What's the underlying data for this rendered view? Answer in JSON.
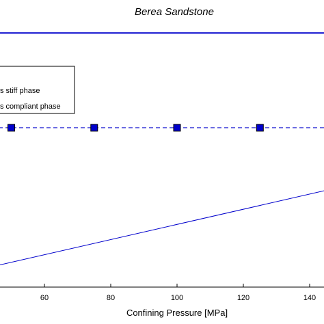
{
  "chart_data": {
    "type": "line",
    "title": "Berea Sandstone",
    "xlabel": "Confining Pressure [MPa]",
    "ylabel": "",
    "x_ticks": [
      60,
      80,
      100,
      120,
      140
    ],
    "xlim": [
      40,
      148
    ],
    "ylim": [
      0,
      1
    ],
    "grid": false,
    "legend_position": "top-left",
    "legend": [
      {
        "label": "s stiff phase"
      },
      {
        "label": "s compliant phase"
      }
    ],
    "series": [
      {
        "style": "solid",
        "color": "#0000cc",
        "x": [
          40,
          148
        ],
        "y": [
          0.885,
          0.885
        ]
      },
      {
        "style": "dashed",
        "marker": "square",
        "color": "#0000cc",
        "x": [
          40,
          50,
          75,
          100,
          125,
          148
        ],
        "y": [
          0.555,
          0.555,
          0.555,
          0.555,
          0.555,
          0.555
        ]
      },
      {
        "style": "solid",
        "color": "#0000cc",
        "x": [
          40,
          148
        ],
        "y": [
          0.06,
          0.345
        ]
      }
    ]
  }
}
